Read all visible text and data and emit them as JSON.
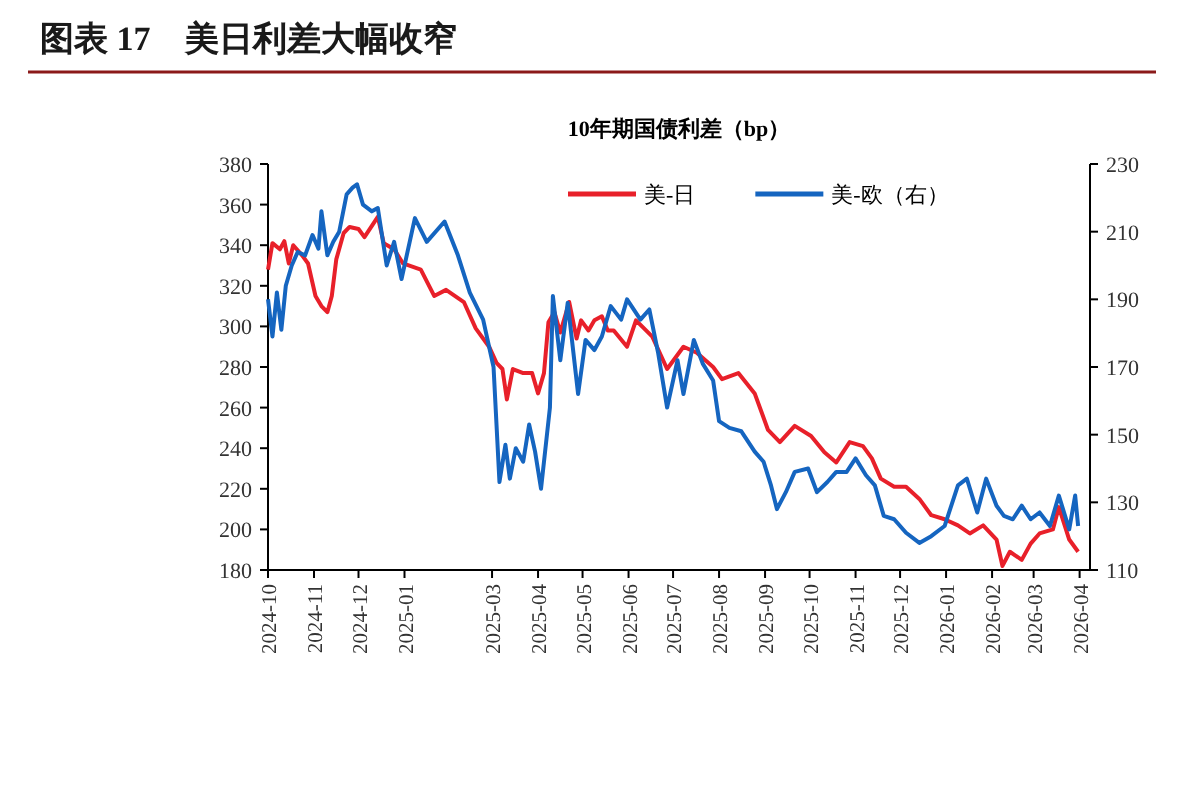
{
  "chart_data": {
    "type": "line",
    "title": "图表 17　美日利差大幅收窄",
    "subtitle": "10年期国债利差（bp）",
    "xlim": [
      "2024-10-01",
      "2026-04-08"
    ],
    "xticks": [
      "2024-10",
      "2024-11",
      "2024-12",
      "2025-01",
      "2025-03",
      "2025-04",
      "2025-05",
      "2025-06",
      "2025-07",
      "2025-08",
      "2025-09",
      "2025-10",
      "2025-11",
      "2025-12",
      "2026-01",
      "2026-02",
      "2026-03",
      "2026-04"
    ],
    "ylim": [
      180,
      380
    ],
    "yticks": [
      180,
      200,
      220,
      240,
      260,
      280,
      300,
      320,
      340,
      360,
      380
    ],
    "y2lim": [
      110,
      230
    ],
    "y2ticks": [
      110,
      130,
      150,
      170,
      190,
      210,
      230
    ],
    "legend": "top",
    "grid": false,
    "series": [
      {
        "name": "美-日",
        "color": "#e8202a",
        "x": [
          "2024-10-01",
          "2024-10-04",
          "2024-10-09",
          "2024-10-12",
          "2024-10-15",
          "2024-10-18",
          "2024-10-24",
          "2024-10-28",
          "2024-11-02",
          "2024-11-06",
          "2024-11-10",
          "2024-11-13",
          "2024-11-16",
          "2024-11-21",
          "2024-11-25",
          "2024-12-01",
          "2024-12-05",
          "2024-12-14",
          "2024-12-18",
          "2024-12-25",
          "2024-12-31",
          "2025-01-12",
          "2025-01-21",
          "2025-01-29",
          "2025-02-10",
          "2025-02-18",
          "2025-02-27",
          "2025-03-04",
          "2025-03-08",
          "2025-03-11",
          "2025-03-15",
          "2025-03-22",
          "2025-03-28",
          "2025-04-01",
          "2025-04-05",
          "2025-04-08",
          "2025-04-12",
          "2025-04-16",
          "2025-04-22",
          "2025-04-27",
          "2025-04-30",
          "2025-05-05",
          "2025-05-09",
          "2025-05-14",
          "2025-05-18",
          "2025-05-22",
          "2025-05-31",
          "2025-06-06",
          "2025-06-17",
          "2025-06-27",
          "2025-07-08",
          "2025-07-17",
          "2025-07-28",
          "2025-08-03",
          "2025-08-14",
          "2025-08-25",
          "2025-09-03",
          "2025-09-11",
          "2025-09-21",
          "2025-10-02",
          "2025-10-11",
          "2025-10-19",
          "2025-10-28",
          "2025-11-06",
          "2025-11-12",
          "2025-11-18",
          "2025-11-27",
          "2025-12-05",
          "2025-12-14",
          "2025-12-22",
          "2025-12-31",
          "2026-01-09",
          "2026-01-17",
          "2026-01-26",
          "2026-02-04",
          "2026-02-08",
          "2026-02-13",
          "2026-02-21",
          "2026-02-27",
          "2026-03-05",
          "2026-03-14",
          "2026-03-18",
          "2026-03-25",
          "2026-03-31"
        ],
        "values": [
          328,
          341,
          338,
          342,
          331,
          340,
          335,
          331,
          315,
          310,
          307,
          315,
          333,
          346,
          349,
          348,
          344,
          354,
          341,
          338,
          331,
          328,
          315,
          318,
          312,
          299,
          290,
          282,
          279,
          264,
          279,
          277,
          277,
          267,
          277,
          302,
          307,
          297,
          312,
          294,
          303,
          298,
          303,
          305,
          298,
          298,
          290,
          303,
          295,
          279,
          290,
          287,
          280,
          274,
          277,
          267,
          249,
          243,
          251,
          246,
          238,
          233,
          243,
          241,
          235,
          225,
          221,
          221,
          215,
          207,
          205,
          202,
          198,
          202,
          195,
          182,
          189,
          185,
          193,
          198,
          200,
          211,
          195,
          189
        ]
      },
      {
        "name": "美-欧（右）",
        "color": "#1565c0",
        "axis": "y2",
        "x": [
          "2024-10-01",
          "2024-10-04",
          "2024-10-07",
          "2024-10-10",
          "2024-10-13",
          "2024-10-17",
          "2024-10-21",
          "2024-10-26",
          "2024-10-31",
          "2024-11-04",
          "2024-11-06",
          "2024-11-10",
          "2024-11-14",
          "2024-11-18",
          "2024-11-23",
          "2024-11-27",
          "2024-11-30",
          "2024-12-04",
          "2024-12-10",
          "2024-12-14",
          "2024-12-20",
          "2024-12-25",
          "2024-12-30",
          "2025-01-08",
          "2025-01-16",
          "2025-01-28",
          "2025-02-06",
          "2025-02-14",
          "2025-02-23",
          "2025-03-02",
          "2025-03-06",
          "2025-03-10",
          "2025-03-13",
          "2025-03-17",
          "2025-03-22",
          "2025-03-26",
          "2025-03-30",
          "2025-04-03",
          "2025-04-09",
          "2025-04-11",
          "2025-04-16",
          "2025-04-21",
          "2025-04-28",
          "2025-05-03",
          "2025-05-09",
          "2025-05-14",
          "2025-05-20",
          "2025-05-27",
          "2025-05-31",
          "2025-06-09",
          "2025-06-15",
          "2025-06-21",
          "2025-06-27",
          "2025-07-04",
          "2025-07-08",
          "2025-07-15",
          "2025-07-21",
          "2025-07-28",
          "2025-08-01",
          "2025-08-08",
          "2025-08-16",
          "2025-08-25",
          "2025-08-31",
          "2025-09-05",
          "2025-09-09",
          "2025-09-15",
          "2025-09-21",
          "2025-09-30",
          "2025-10-06",
          "2025-10-13",
          "2025-10-19",
          "2025-10-26",
          "2025-11-01",
          "2025-11-08",
          "2025-11-14",
          "2025-11-20",
          "2025-11-27",
          "2025-12-05",
          "2025-12-14",
          "2025-12-22",
          "2025-12-31",
          "2026-01-09",
          "2026-01-15",
          "2026-01-22",
          "2026-01-28",
          "2026-02-04",
          "2026-02-09",
          "2026-02-15",
          "2026-02-21",
          "2026-02-27",
          "2026-03-05",
          "2026-03-12",
          "2026-03-18",
          "2026-03-25",
          "2026-03-29",
          "2026-03-31"
        ],
        "values": [
          190,
          179,
          192,
          181,
          194,
          200,
          204,
          203,
          209,
          205,
          216,
          203,
          207,
          210,
          221,
          223,
          224,
          218,
          216,
          217,
          200,
          207,
          196,
          214,
          207,
          213,
          203,
          192,
          184,
          170,
          136,
          147,
          137,
          146,
          142,
          153,
          145,
          134,
          158,
          191,
          172,
          189,
          162,
          178,
          175,
          179,
          188,
          184,
          190,
          184,
          187,
          174,
          158,
          172,
          162,
          178,
          171,
          166,
          154,
          152,
          151,
          145,
          142,
          135,
          128,
          133,
          139,
          140,
          133,
          136,
          139,
          139,
          143,
          138,
          135,
          126,
          125,
          121,
          118,
          120,
          123,
          135,
          137,
          127,
          137,
          129,
          126,
          125,
          129,
          125,
          127,
          123,
          132,
          122,
          132,
          123
        ]
      }
    ]
  }
}
